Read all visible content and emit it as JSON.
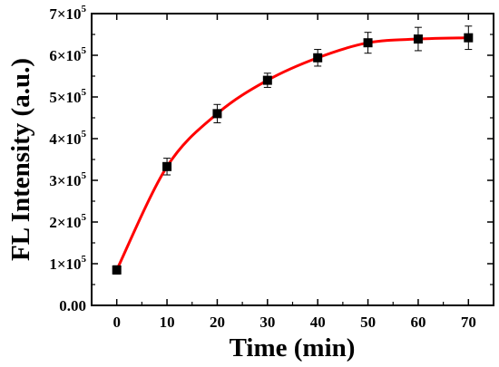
{
  "chart_data": {
    "type": "line",
    "xlabel": "Time (min)",
    "ylabel": "FL Intensity (a.u.)",
    "xlim": [
      -5,
      75
    ],
    "ylim": [
      0,
      700000
    ],
    "x_ticks": [
      {
        "value": 0,
        "label": "0"
      },
      {
        "value": 10,
        "label": "10"
      },
      {
        "value": 20,
        "label": "20"
      },
      {
        "value": 30,
        "label": "30"
      },
      {
        "value": 40,
        "label": "40"
      },
      {
        "value": 50,
        "label": "50"
      },
      {
        "value": 60,
        "label": "60"
      },
      {
        "value": 70,
        "label": "70"
      }
    ],
    "y_ticks": [
      {
        "value": 0,
        "label": "0.00",
        "exp": ""
      },
      {
        "value": 100000,
        "label": "1×10",
        "exp": "5"
      },
      {
        "value": 200000,
        "label": "2×10",
        "exp": "5"
      },
      {
        "value": 300000,
        "label": "3×10",
        "exp": "5"
      },
      {
        "value": 400000,
        "label": "4×10",
        "exp": "5"
      },
      {
        "value": 500000,
        "label": "5×10",
        "exp": "5"
      },
      {
        "value": 600000,
        "label": "6×10",
        "exp": "5"
      },
      {
        "value": 700000,
        "label": "7×10",
        "exp": "5"
      }
    ],
    "series": [
      {
        "line_color": "#ff0000",
        "marker_color": "#000000",
        "marker": "square",
        "x": [
          0,
          10,
          20,
          30,
          40,
          50,
          60,
          70
        ],
        "y": [
          85000,
          333000,
          460000,
          540000,
          594000,
          630000,
          639000,
          642000
        ],
        "error": [
          10000,
          20000,
          22000,
          17000,
          20000,
          25000,
          28000,
          28000
        ]
      }
    ]
  }
}
